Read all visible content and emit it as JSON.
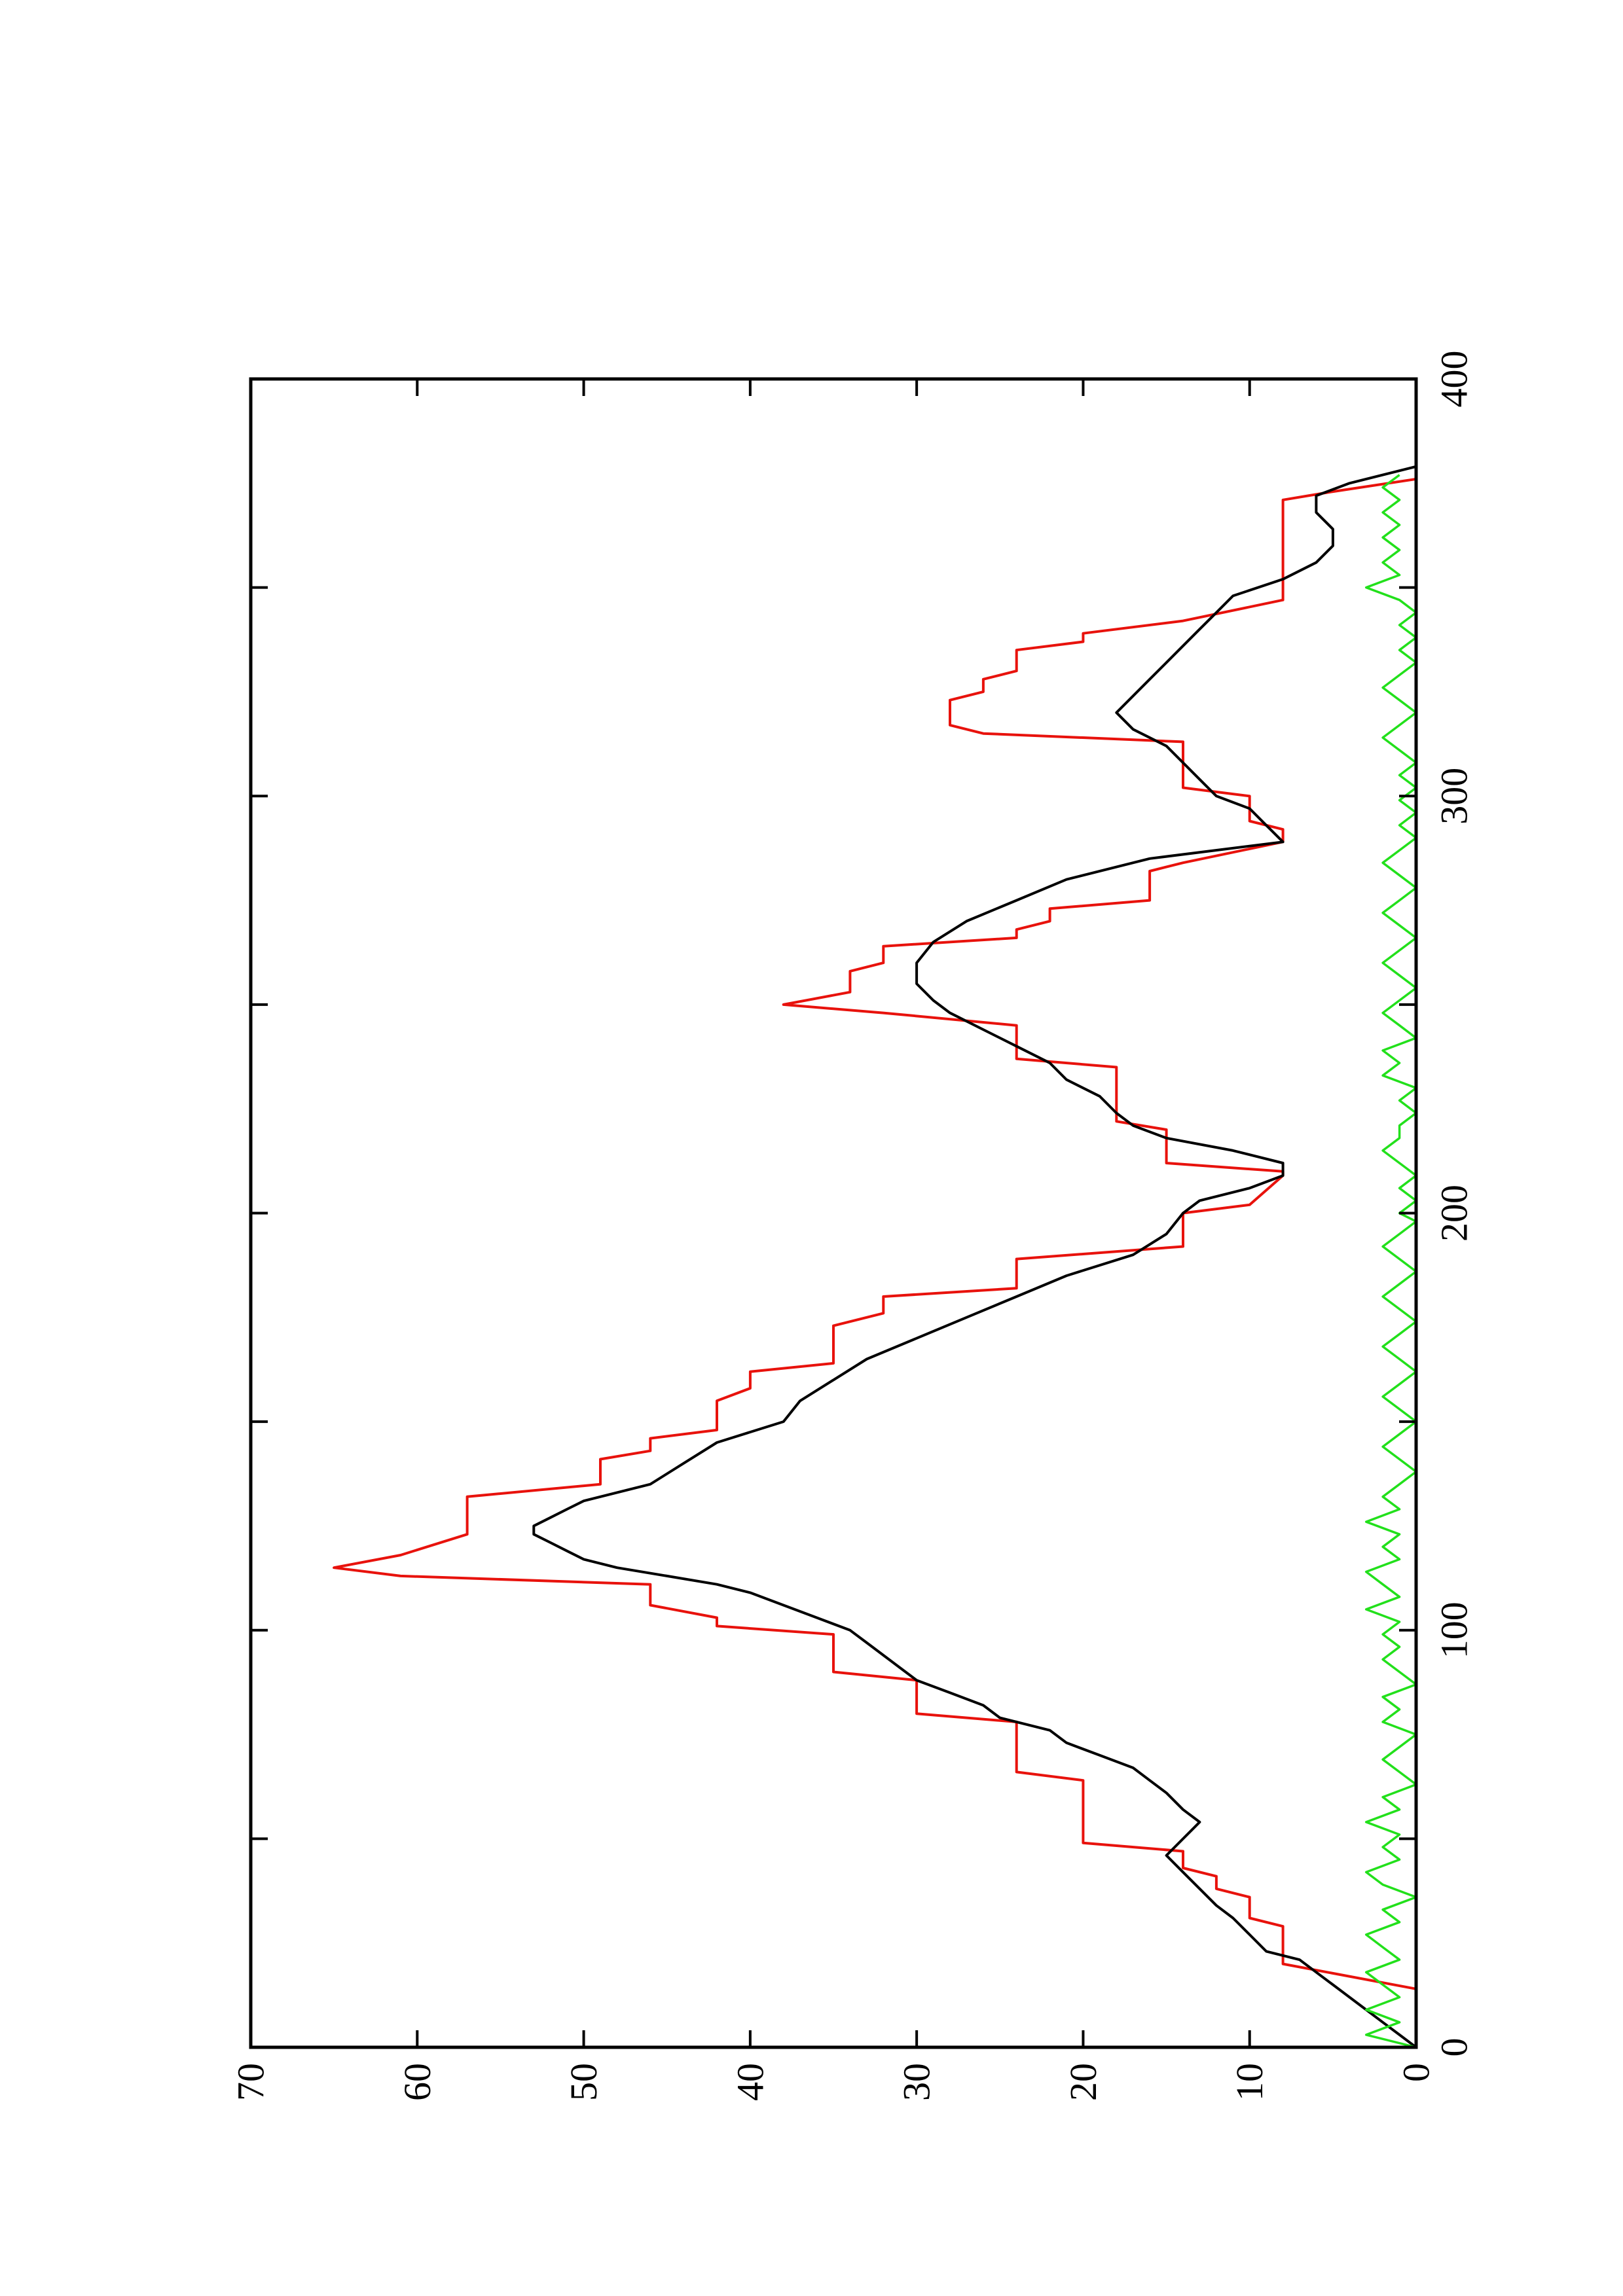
{
  "chart_data": {
    "type": "line",
    "orientation": "rotated 90 degrees counter-clockwise (x axis runs bottom to top on the page, y axis runs left to right)",
    "title": "",
    "xlabel": "",
    "ylabel": "",
    "xlim": [
      0,
      400
    ],
    "ylim": [
      0,
      70
    ],
    "x_ticks": [
      0,
      100,
      200,
      300,
      400
    ],
    "x_tick_labels": [
      "0",
      "100",
      "200",
      "300",
      "400"
    ],
    "x_minor_ticks": [
      50,
      150,
      250,
      350
    ],
    "y_ticks": [
      0,
      10,
      20,
      30,
      40,
      50,
      60,
      70
    ],
    "y_tick_labels": [
      "0",
      "10",
      "20",
      "30",
      "40",
      "50",
      "60",
      "70"
    ],
    "grid": false,
    "legend": "none",
    "series": [
      {
        "color": "#e8120c",
        "style": "stepped line",
        "points": [
          [
            0,
            0
          ],
          [
            14,
            0
          ],
          [
            20,
            8
          ],
          [
            29,
            8
          ],
          [
            31,
            10
          ],
          [
            36,
            10
          ],
          [
            38,
            12
          ],
          [
            41,
            12
          ],
          [
            43,
            14
          ],
          [
            47,
            14
          ],
          [
            49,
            20
          ],
          [
            64,
            20
          ],
          [
            66,
            24
          ],
          [
            78,
            24
          ],
          [
            80,
            30
          ],
          [
            88,
            30
          ],
          [
            90,
            35
          ],
          [
            99,
            35
          ],
          [
            101,
            42
          ],
          [
            103,
            42
          ],
          [
            106,
            46
          ],
          [
            111,
            46
          ],
          [
            113,
            61
          ],
          [
            115,
            65
          ],
          [
            118,
            61
          ],
          [
            123,
            57
          ],
          [
            132,
            57
          ],
          [
            135,
            49
          ],
          [
            141,
            49
          ],
          [
            143,
            46
          ],
          [
            146,
            46
          ],
          [
            148,
            42
          ],
          [
            155,
            42
          ],
          [
            158,
            40
          ],
          [
            162,
            40
          ],
          [
            164,
            35
          ],
          [
            173,
            35
          ],
          [
            176,
            32
          ],
          [
            180,
            32
          ],
          [
            182,
            24
          ],
          [
            189,
            24
          ],
          [
            192,
            14
          ],
          [
            200,
            14
          ],
          [
            202,
            10
          ],
          [
            209,
            8
          ],
          [
            210,
            8
          ],
          [
            212,
            15
          ],
          [
            220,
            15
          ],
          [
            222,
            18
          ],
          [
            235,
            18
          ],
          [
            237,
            24
          ],
          [
            245,
            24
          ],
          [
            248,
            32
          ],
          [
            250,
            38
          ],
          [
            253,
            34
          ],
          [
            258,
            34
          ],
          [
            260,
            32
          ],
          [
            264,
            32
          ],
          [
            266,
            24
          ],
          [
            268,
            24
          ],
          [
            270,
            22
          ],
          [
            273,
            22
          ],
          [
            275,
            16
          ],
          [
            282,
            16
          ],
          [
            284,
            14
          ],
          [
            289,
            8
          ],
          [
            292,
            8
          ],
          [
            294,
            10
          ],
          [
            300,
            10
          ],
          [
            302,
            14
          ],
          [
            313,
            14
          ],
          [
            315,
            26
          ],
          [
            317,
            28
          ],
          [
            323,
            28
          ],
          [
            325,
            26
          ],
          [
            328,
            26
          ],
          [
            330,
            24
          ],
          [
            335,
            24
          ],
          [
            337,
            20
          ],
          [
            339,
            20
          ],
          [
            342,
            14
          ],
          [
            347,
            8
          ],
          [
            371,
            8
          ],
          [
            373,
            5
          ],
          [
            376,
            0
          ]
        ]
      },
      {
        "color": "#000000",
        "style": "line",
        "points": [
          [
            0,
            0
          ],
          [
            3,
            1
          ],
          [
            6,
            2
          ],
          [
            9,
            3
          ],
          [
            12,
            4
          ],
          [
            15,
            5
          ],
          [
            18,
            6
          ],
          [
            21,
            7
          ],
          [
            23,
            9
          ],
          [
            27,
            10
          ],
          [
            31,
            11
          ],
          [
            34,
            12
          ],
          [
            38,
            13
          ],
          [
            42,
            14
          ],
          [
            46,
            15
          ],
          [
            50,
            14
          ],
          [
            54,
            13
          ],
          [
            57,
            14
          ],
          [
            61,
            15
          ],
          [
            64,
            16
          ],
          [
            67,
            17
          ],
          [
            70,
            19
          ],
          [
            73,
            21
          ],
          [
            76,
            22
          ],
          [
            79,
            25
          ],
          [
            82,
            26
          ],
          [
            85,
            28
          ],
          [
            88,
            30
          ],
          [
            91,
            31
          ],
          [
            94,
            32
          ],
          [
            97,
            33
          ],
          [
            100,
            34
          ],
          [
            103,
            36
          ],
          [
            106,
            38
          ],
          [
            109,
            40
          ],
          [
            111,
            42
          ],
          [
            113,
            45
          ],
          [
            115,
            48
          ],
          [
            117,
            50
          ],
          [
            119,
            51
          ],
          [
            121,
            52
          ],
          [
            123,
            53
          ],
          [
            125,
            53
          ],
          [
            127,
            52
          ],
          [
            129,
            51
          ],
          [
            131,
            50
          ],
          [
            135,
            46
          ],
          [
            140,
            44
          ],
          [
            145,
            42
          ],
          [
            150,
            38
          ],
          [
            155,
            37
          ],
          [
            160,
            35
          ],
          [
            165,
            33
          ],
          [
            170,
            30
          ],
          [
            175,
            27
          ],
          [
            180,
            24
          ],
          [
            185,
            21
          ],
          [
            190,
            17
          ],
          [
            195,
            15
          ],
          [
            200,
            14
          ],
          [
            203,
            13
          ],
          [
            206,
            10
          ],
          [
            209,
            8
          ],
          [
            212,
            8
          ],
          [
            215,
            11
          ],
          [
            218,
            15
          ],
          [
            221,
            17
          ],
          [
            224,
            18
          ],
          [
            228,
            19
          ],
          [
            232,
            21
          ],
          [
            236,
            22
          ],
          [
            240,
            24
          ],
          [
            244,
            26
          ],
          [
            248,
            28
          ],
          [
            251,
            29
          ],
          [
            255,
            30
          ],
          [
            260,
            30
          ],
          [
            265,
            29
          ],
          [
            270,
            27
          ],
          [
            275,
            24
          ],
          [
            280,
            21
          ],
          [
            285,
            16
          ],
          [
            289,
            8
          ],
          [
            293,
            9
          ],
          [
            297,
            10
          ],
          [
            300,
            12
          ],
          [
            304,
            13
          ],
          [
            308,
            14
          ],
          [
            312,
            15
          ],
          [
            316,
            17
          ],
          [
            320,
            18
          ],
          [
            324,
            17
          ],
          [
            328,
            16
          ],
          [
            332,
            15
          ],
          [
            336,
            14
          ],
          [
            340,
            13
          ],
          [
            344,
            12
          ],
          [
            348,
            11
          ],
          [
            352,
            8
          ],
          [
            356,
            6
          ],
          [
            360,
            5
          ],
          [
            364,
            5
          ],
          [
            368,
            6
          ],
          [
            372,
            6
          ],
          [
            375,
            4
          ],
          [
            377,
            2
          ],
          [
            379,
            0
          ]
        ]
      },
      {
        "color": "#22e01b",
        "style": "noisy line (residual)",
        "points": [
          [
            0,
            0
          ],
          [
            3,
            3
          ],
          [
            6,
            1
          ],
          [
            9,
            3
          ],
          [
            12,
            1
          ],
          [
            15,
            2
          ],
          [
            18,
            3
          ],
          [
            21,
            1
          ],
          [
            24,
            2
          ],
          [
            27,
            3
          ],
          [
            30,
            1
          ],
          [
            33,
            2
          ],
          [
            36,
            0
          ],
          [
            39,
            2
          ],
          [
            42,
            3
          ],
          [
            45,
            1
          ],
          [
            48,
            2
          ],
          [
            51,
            1
          ],
          [
            54,
            3
          ],
          [
            57,
            1
          ],
          [
            60,
            2
          ],
          [
            63,
            0
          ],
          [
            66,
            1
          ],
          [
            69,
            2
          ],
          [
            72,
            1
          ],
          [
            75,
            0
          ],
          [
            78,
            2
          ],
          [
            81,
            1
          ],
          [
            84,
            2
          ],
          [
            87,
            0
          ],
          [
            90,
            1
          ],
          [
            93,
            2
          ],
          [
            96,
            1
          ],
          [
            99,
            2
          ],
          [
            102,
            1
          ],
          [
            105,
            3
          ],
          [
            108,
            1
          ],
          [
            111,
            2
          ],
          [
            114,
            3
          ],
          [
            117,
            1
          ],
          [
            120,
            2
          ],
          [
            123,
            1
          ],
          [
            126,
            3
          ],
          [
            129,
            1
          ],
          [
            132,
            2
          ],
          [
            135,
            1
          ],
          [
            138,
            0
          ],
          [
            141,
            1
          ],
          [
            144,
            2
          ],
          [
            147,
            1
          ],
          [
            150,
            0
          ],
          [
            153,
            1
          ],
          [
            156,
            2
          ],
          [
            159,
            1
          ],
          [
            162,
            0
          ],
          [
            165,
            1
          ],
          [
            168,
            2
          ],
          [
            171,
            1
          ],
          [
            174,
            0
          ],
          [
            177,
            1
          ],
          [
            180,
            2
          ],
          [
            183,
            1
          ],
          [
            186,
            0
          ],
          [
            189,
            1
          ],
          [
            192,
            2
          ],
          [
            195,
            1
          ],
          [
            198,
            0
          ],
          [
            200,
            1
          ],
          [
            203,
            0
          ],
          [
            206,
            1
          ],
          [
            209,
            0
          ],
          [
            212,
            1
          ],
          [
            215,
            2
          ],
          [
            218,
            1
          ],
          [
            221,
            1
          ],
          [
            224,
            0
          ],
          [
            227,
            1
          ],
          [
            230,
            0
          ],
          [
            233,
            2
          ],
          [
            236,
            1
          ],
          [
            239,
            2
          ],
          [
            242,
            0
          ],
          [
            245,
            1
          ],
          [
            248,
            2
          ],
          [
            251,
            1
          ],
          [
            254,
            0
          ],
          [
            257,
            1
          ],
          [
            260,
            2
          ],
          [
            263,
            1
          ],
          [
            266,
            0
          ],
          [
            269,
            1
          ],
          [
            272,
            2
          ],
          [
            275,
            1
          ],
          [
            278,
            0
          ],
          [
            281,
            1
          ],
          [
            284,
            2
          ],
          [
            287,
            1
          ],
          [
            290,
            0
          ],
          [
            293,
            1
          ],
          [
            296,
            0
          ],
          [
            299,
            1
          ],
          [
            302,
            0
          ],
          [
            305,
            1
          ],
          [
            308,
            0
          ],
          [
            311,
            1
          ],
          [
            314,
            2
          ],
          [
            317,
            1
          ],
          [
            320,
            0
          ],
          [
            323,
            1
          ],
          [
            326,
            2
          ],
          [
            329,
            1
          ],
          [
            332,
            0
          ],
          [
            335,
            1
          ],
          [
            338,
            0
          ],
          [
            341,
            1
          ],
          [
            344,
            0
          ],
          [
            347,
            1
          ],
          [
            350,
            3
          ],
          [
            353,
            1
          ],
          [
            356,
            2
          ],
          [
            359,
            1
          ],
          [
            362,
            2
          ],
          [
            365,
            1
          ],
          [
            368,
            2
          ],
          [
            371,
            1
          ],
          [
            374,
            2
          ],
          [
            377,
            1
          ]
        ]
      }
    ]
  }
}
